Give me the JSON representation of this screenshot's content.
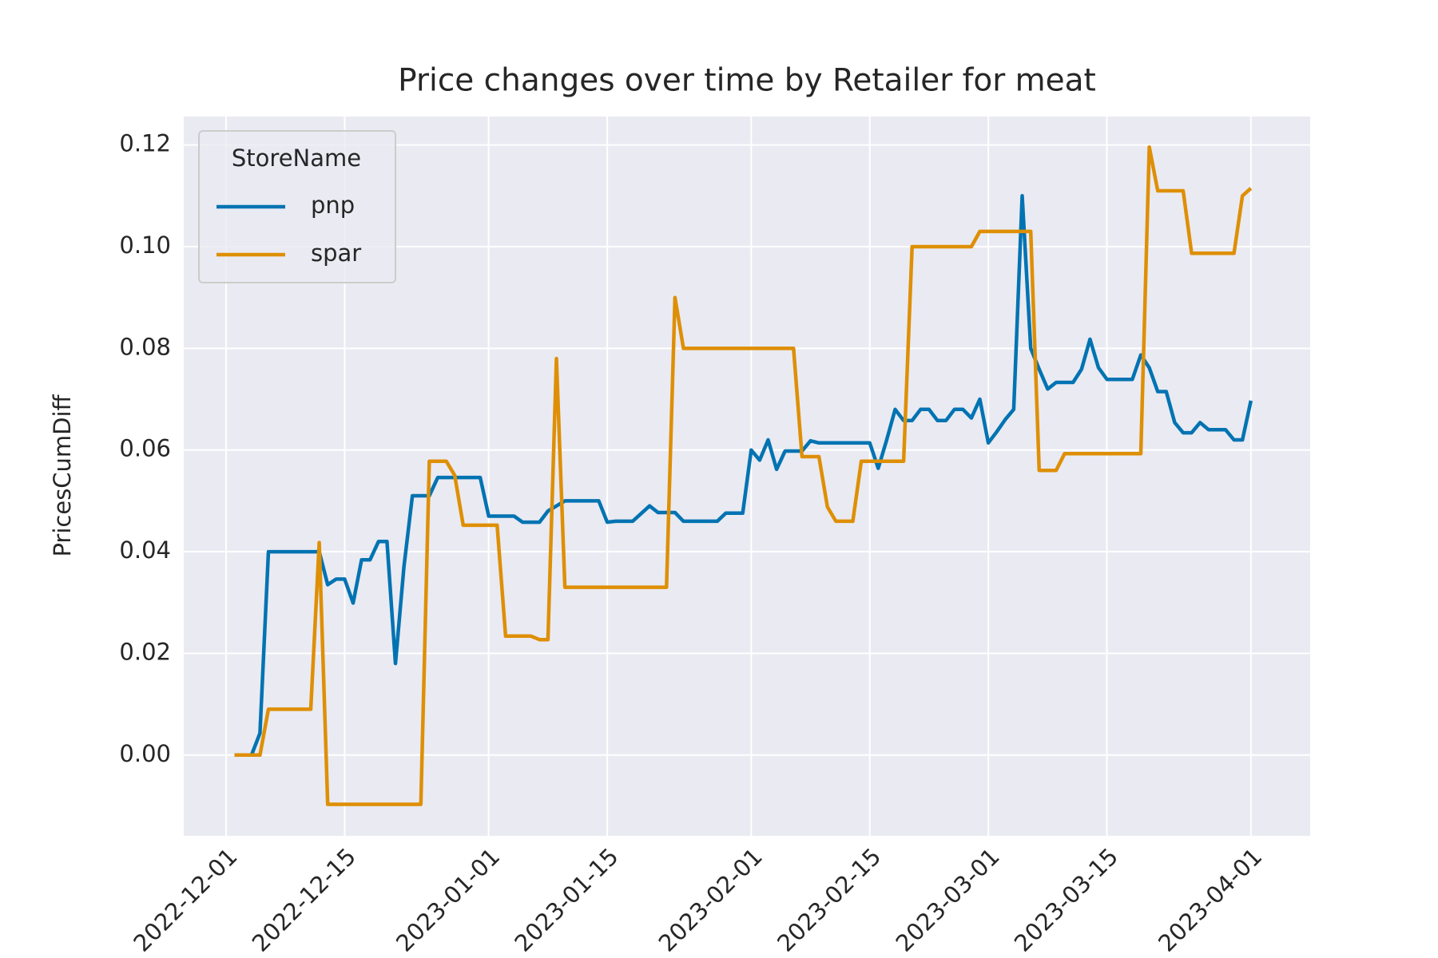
{
  "chart_data": {
    "type": "line",
    "title": "Price changes over time by Retailer for meat",
    "y_label": "PricesCumDiff",
    "legend_title": "StoreName",
    "legend": "upper left",
    "grid": true,
    "xlim": [
      "2022-11-26",
      "2023-04-08"
    ],
    "xticks": [
      "2022-12-01",
      "2022-12-15",
      "2023-01-01",
      "2023-01-15",
      "2023-02-01",
      "2023-02-15",
      "2023-03-01",
      "2023-03-15",
      "2023-04-01"
    ],
    "ylim": [
      -0.0159,
      0.1256
    ],
    "yticks": [
      {
        "value": 0,
        "label": "0.00"
      },
      {
        "value": 0.02,
        "label": "0.02"
      },
      {
        "value": 0.04,
        "label": "0.04"
      },
      {
        "value": 0.06,
        "label": "0.06"
      },
      {
        "value": 0.08,
        "label": "0.08"
      },
      {
        "value": 0.1,
        "label": "0.10"
      },
      {
        "value": 0.12,
        "label": "0.12"
      }
    ],
    "series": [
      {
        "name": "pnp",
        "color": "#0173b2",
        "x": [
          "2022-12-02",
          "2022-12-04",
          "2022-12-05",
          "2022-12-06",
          "2022-12-12",
          "2022-12-13",
          "2022-12-14",
          "2022-12-15",
          "2022-12-16",
          "2022-12-17",
          "2022-12-18",
          "2022-12-19",
          "2022-12-20",
          "2022-12-21",
          "2022-12-22",
          "2022-12-23",
          "2022-12-25",
          "2022-12-26",
          "2022-12-31",
          "2023-01-01",
          "2023-01-04",
          "2023-01-05",
          "2023-01-07",
          "2023-01-08",
          "2023-01-10",
          "2023-01-14",
          "2023-01-15",
          "2023-01-16",
          "2023-01-18",
          "2023-01-20",
          "2023-01-21",
          "2023-01-23",
          "2023-01-24",
          "2023-01-28",
          "2023-01-29",
          "2023-01-31",
          "2023-02-01",
          "2023-02-02",
          "2023-02-03",
          "2023-02-04",
          "2023-02-05",
          "2023-02-07",
          "2023-02-08",
          "2023-02-09",
          "2023-02-15",
          "2023-02-16",
          "2023-02-17",
          "2023-02-18",
          "2023-02-19",
          "2023-02-20",
          "2023-02-21",
          "2023-02-22",
          "2023-02-23",
          "2023-02-24",
          "2023-02-25",
          "2023-02-26",
          "2023-02-27",
          "2023-02-28",
          "2023-03-01",
          "2023-03-02",
          "2023-03-03",
          "2023-03-04",
          "2023-03-05",
          "2023-03-06",
          "2023-03-07",
          "2023-03-08",
          "2023-03-09",
          "2023-03-11",
          "2023-03-12",
          "2023-03-13",
          "2023-03-14",
          "2023-03-15",
          "2023-03-18",
          "2023-03-19",
          "2023-03-20",
          "2023-03-21",
          "2023-03-22",
          "2023-03-23",
          "2023-03-24",
          "2023-03-25",
          "2023-03-26",
          "2023-03-27",
          "2023-03-29",
          "2023-03-30",
          "2023-03-31",
          "2023-04-01"
        ],
        "values": [
          0,
          0,
          0.0043,
          0.04,
          0.04,
          0.0335,
          0.0346,
          0.0346,
          0.0299,
          0.0384,
          0.0384,
          0.042,
          0.042,
          0.018,
          0.037,
          0.051,
          0.051,
          0.0546,
          0.0546,
          0.047,
          0.047,
          0.0458,
          0.0458,
          0.048,
          0.05,
          0.05,
          0.0458,
          0.046,
          0.046,
          0.049,
          0.0477,
          0.0477,
          0.046,
          0.046,
          0.0476,
          0.0476,
          0.06,
          0.058,
          0.062,
          0.0562,
          0.0598,
          0.0598,
          0.0618,
          0.0614,
          0.0614,
          0.0564,
          0.062,
          0.068,
          0.0658,
          0.0658,
          0.068,
          0.068,
          0.0658,
          0.0658,
          0.068,
          0.068,
          0.0663,
          0.07,
          0.0614,
          0.0636,
          0.066,
          0.068,
          0.11,
          0.08,
          0.0759,
          0.072,
          0.0733,
          0.0733,
          0.0759,
          0.0818,
          0.0762,
          0.0739,
          0.0739,
          0.0787,
          0.0762,
          0.0715,
          0.0715,
          0.0654,
          0.0634,
          0.0634,
          0.0654,
          0.064,
          0.064,
          0.062,
          0.062,
          0.0697
        ]
      },
      {
        "name": "spar",
        "color": "#de8f05",
        "x": [
          "2022-12-02",
          "2022-12-05",
          "2022-12-06",
          "2022-12-11",
          "2022-12-12",
          "2022-12-13",
          "2022-12-24",
          "2022-12-25",
          "2022-12-27",
          "2022-12-28",
          "2022-12-29",
          "2023-01-02",
          "2023-01-03",
          "2023-01-06",
          "2023-01-07",
          "2023-01-08",
          "2023-01-09",
          "2023-01-10",
          "2023-01-22",
          "2023-01-23",
          "2023-01-24",
          "2023-02-06",
          "2023-02-07",
          "2023-02-09",
          "2023-02-10",
          "2023-02-11",
          "2023-02-13",
          "2023-02-14",
          "2023-02-19",
          "2023-02-20",
          "2023-02-27",
          "2023-02-28",
          "2023-03-06",
          "2023-03-07",
          "2023-03-09",
          "2023-03-10",
          "2023-03-19",
          "2023-03-20",
          "2023-03-21",
          "2023-03-24",
          "2023-03-25",
          "2023-03-30",
          "2023-03-31",
          "2023-04-01"
        ],
        "values": [
          0,
          0,
          0.009,
          0.009,
          0.0418,
          -0.0097,
          -0.0097,
          0.0578,
          0.0578,
          0.055,
          0.0452,
          0.0452,
          0.0234,
          0.0234,
          0.0227,
          0.0227,
          0.078,
          0.033,
          0.033,
          0.09,
          0.08,
          0.08,
          0.0587,
          0.0587,
          0.0488,
          0.046,
          0.046,
          0.0578,
          0.0578,
          0.1,
          0.1,
          0.103,
          0.103,
          0.056,
          0.056,
          0.0593,
          0.0593,
          0.1196,
          0.111,
          0.111,
          0.0987,
          0.0987,
          0.11,
          0.1115
        ]
      }
    ]
  }
}
